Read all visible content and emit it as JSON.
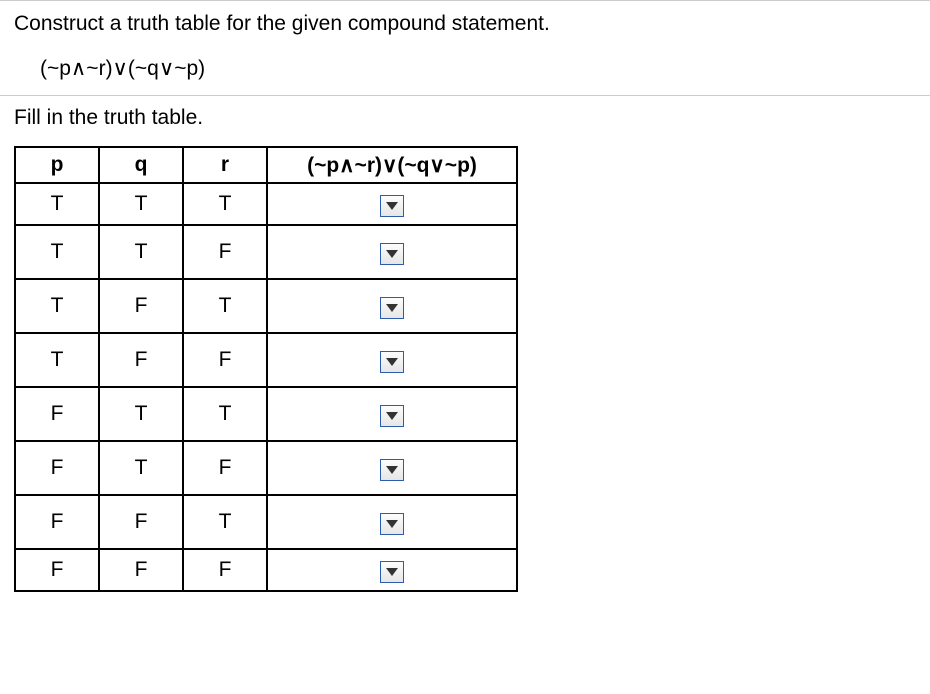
{
  "instruction": "Construct a truth table for the given compound statement.",
  "expression": "(~p∧~r)∨(~q∨~p)",
  "fill_text": "Fill in the truth table.",
  "table": {
    "headers": [
      "p",
      "q",
      "r",
      "(~p∧~r)∨(~q∨~p)"
    ],
    "rows": [
      [
        "T",
        "T",
        "T"
      ],
      [
        "T",
        "T",
        "F"
      ],
      [
        "T",
        "F",
        "T"
      ],
      [
        "T",
        "F",
        "F"
      ],
      [
        "F",
        "T",
        "T"
      ],
      [
        "F",
        "T",
        "F"
      ],
      [
        "F",
        "F",
        "T"
      ],
      [
        "F",
        "F",
        "F"
      ]
    ]
  },
  "colors": {
    "border": "#000000",
    "divider": "#cccccc",
    "dropdown_border": "#2a5db0",
    "text": "#000000",
    "background": "#ffffff"
  }
}
